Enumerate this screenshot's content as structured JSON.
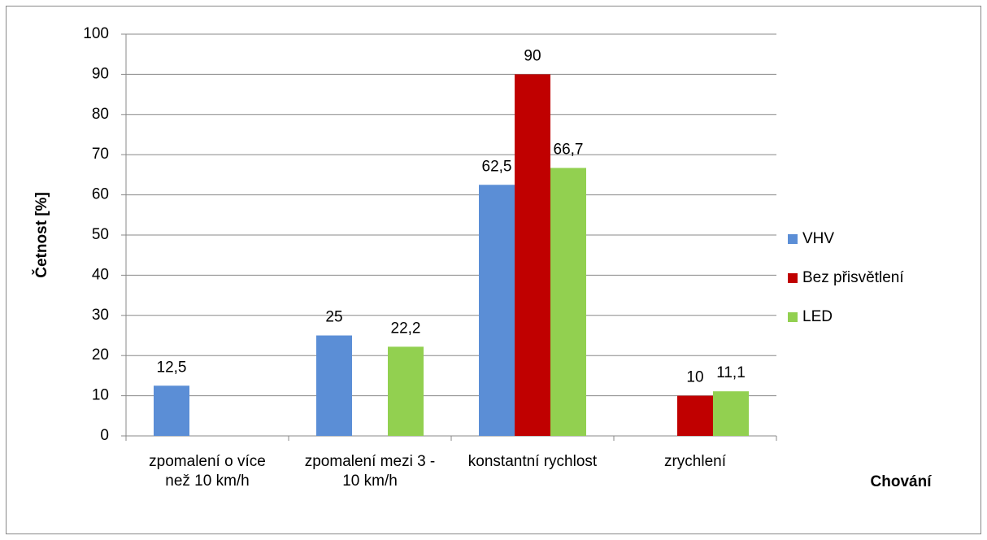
{
  "chart_data": {
    "type": "bar",
    "x_label": "Chování",
    "y_label": "Četnost  [%]",
    "categories": [
      "zpomalení o více než 10 km/h",
      "zpomalení mezi 3 - 10 km/h",
      "konstantní rychlost",
      "zrychlení"
    ],
    "series": [
      {
        "name": "VHV",
        "color": "#5b8ed6",
        "values": [
          12.5,
          25,
          62.5,
          null
        ],
        "value_labels": [
          "12,5",
          "25",
          "62,5",
          null
        ]
      },
      {
        "name": "Bez přisvětlení",
        "color": "#c00000",
        "values": [
          null,
          null,
          90,
          10
        ],
        "value_labels": [
          null,
          null,
          "90",
          "10"
        ]
      },
      {
        "name": "LED",
        "color": "#92d050",
        "values": [
          null,
          22.2,
          66.7,
          11.1
        ],
        "value_labels": [
          null,
          "22,2",
          "66,7",
          "11,1"
        ]
      }
    ],
    "ylim": [
      0,
      100
    ],
    "yticks": [
      0,
      10,
      20,
      30,
      40,
      50,
      60,
      70,
      80,
      90,
      100
    ],
    "grid": true,
    "legend": "right"
  }
}
